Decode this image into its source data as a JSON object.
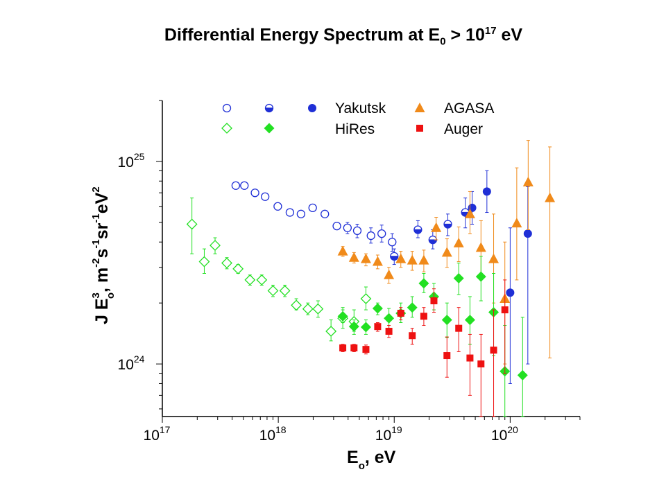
{
  "title": {
    "main": "Differential Energy Spectrum at E",
    "sub": "0",
    "mid": " > 10",
    "sup": "17",
    "tail": " eV"
  },
  "colors": {
    "yakutsk": "#1f2fd6",
    "agasa": "#f08a1a",
    "hires": "#22e022",
    "auger": "#ee1111",
    "axis": "#000000"
  },
  "chart_data": {
    "type": "scatter",
    "x_scale": "log",
    "y_scale": "log",
    "xlim": [
      1e+17,
      4e+20
    ],
    "ylim": [
      5.5e+23,
      2e+25
    ],
    "x_ticks": [
      {
        "value": 1e+17,
        "base": "10",
        "exp": "17"
      },
      {
        "value": 1e+18,
        "base": "10",
        "exp": "18"
      },
      {
        "value": 1e+19,
        "base": "10",
        "exp": "19"
      },
      {
        "value": 1e+20,
        "base": "10",
        "exp": "20"
      }
    ],
    "y_ticks": [
      {
        "value": 1e+24,
        "base": "10",
        "exp": "24"
      },
      {
        "value": 1e+25,
        "base": "10",
        "exp": "25"
      }
    ],
    "xlabel": {
      "a": "E",
      "sub": "o",
      "b": ", eV"
    },
    "ylabel": {
      "a": "J E",
      "sup1": "3",
      "sub1": "o",
      "b": ", m",
      "sup2": "-2",
      "c": "s",
      "sup3": "-1",
      "d": "sr",
      "sup4": "-1",
      "e": "eV",
      "sup5": "2"
    },
    "legend": [
      {
        "label": "Yakutsk"
      },
      {
        "label": "AGASA"
      },
      {
        "label": "HiRes"
      },
      {
        "label": "Auger"
      }
    ],
    "series": [
      {
        "name": "Yakutsk",
        "marker": "circle-open",
        "color": "#1f2fd6",
        "points": [
          {
            "x": 4.3e+17,
            "y": 7.6e+24
          },
          {
            "x": 5.1e+17,
            "y": 7.6e+24
          },
          {
            "x": 6.3e+17,
            "y": 7e+24
          },
          {
            "x": 7.7e+17,
            "y": 6.7e+24
          },
          {
            "x": 9.9e+17,
            "y": 6e+24
          },
          {
            "x": 1.26e+18,
            "y": 5.6e+24
          },
          {
            "x": 1.57e+18,
            "y": 5.5e+24
          },
          {
            "x": 1.98e+18,
            "y": 5.9e+24
          },
          {
            "x": 2.52e+18,
            "y": 5.5e+24
          },
          {
            "x": 3.2e+18,
            "y": 4.8e+24,
            "err": [
              4.6e+24,
              5e+24
            ]
          },
          {
            "x": 3.95e+18,
            "y": 4.7e+24,
            "err": [
              4.4e+24,
              5e+24
            ]
          },
          {
            "x": 4.8e+18,
            "y": 4.55e+24,
            "err": [
              4.2e+24,
              4.9e+24
            ]
          },
          {
            "x": 6.3e+18,
            "y": 4.3e+24,
            "err": [
              3.95e+24,
              4.7e+24
            ]
          },
          {
            "x": 7.8e+18,
            "y": 4.4e+24,
            "err": [
              4e+24,
              4.85e+24
            ]
          },
          {
            "x": 9.6e+18,
            "y": 4e+24,
            "err": [
              3.6e+24,
              4.4e+24
            ]
          }
        ]
      },
      {
        "name": "Yakutsk (half-filled)",
        "marker": "circle-half",
        "color": "#1f2fd6",
        "points": [
          {
            "x": 1e+19,
            "y": 3.4e+24,
            "err": [
              3.1e+24,
              3.7e+24
            ]
          },
          {
            "x": 1.6e+19,
            "y": 4.6e+24,
            "err": [
              4.2e+24,
              5.1e+24
            ]
          },
          {
            "x": 2.15e+19,
            "y": 4.1e+24,
            "err": [
              3.7e+24,
              4.6e+24
            ]
          },
          {
            "x": 2.9e+19,
            "y": 4.9e+24,
            "err": [
              4.3e+24,
              5.5e+24
            ]
          },
          {
            "x": 4.1e+19,
            "y": 5.6e+24,
            "err": [
              4.7e+24,
              6.6e+24
            ]
          }
        ]
      },
      {
        "name": "Yakutsk (filled)",
        "marker": "circle-filled",
        "color": "#1f2fd6",
        "points": [
          {
            "x": 4.7e+19,
            "y": 5.9e+24,
            "err": [
              4.9e+24,
              7.1e+24
            ]
          },
          {
            "x": 6.3e+19,
            "y": 7.1e+24,
            "err": [
              5.6e+24,
              9e+24
            ]
          },
          {
            "x": 1e+20,
            "y": 2.25e+24,
            "err": [
              8e+23,
              4.7e+24
            ]
          },
          {
            "x": 1.42e+20,
            "y": 4.4e+24,
            "err": [
              1e+24,
              7.5e+24
            ]
          }
        ]
      },
      {
        "name": "AGASA",
        "marker": "triangle",
        "color": "#f08a1a",
        "points": [
          {
            "x": 3.6e+18,
            "y": 3.6e+24,
            "err": [
              3.4e+24,
              3.8e+24
            ]
          },
          {
            "x": 4.5e+18,
            "y": 3.35e+24,
            "err": [
              3.15e+24,
              3.55e+24
            ]
          },
          {
            "x": 5.7e+18,
            "y": 3.3e+24,
            "err": [
              3.05e+24,
              3.5e+24
            ]
          },
          {
            "x": 7.2e+18,
            "y": 3.2e+24,
            "err": [
              2.95e+24,
              3.45e+24
            ]
          },
          {
            "x": 9e+18,
            "y": 2.75e+24,
            "err": [
              2.5e+24,
              3e+24
            ]
          },
          {
            "x": 1.14e+19,
            "y": 3.3e+24,
            "err": [
              3e+24,
              3.6e+24
            ]
          },
          {
            "x": 1.43e+19,
            "y": 3.25e+24,
            "err": [
              2.9e+24,
              3.6e+24
            ]
          },
          {
            "x": 1.8e+19,
            "y": 3.25e+24,
            "err": [
              2.85e+24,
              3.65e+24
            ]
          },
          {
            "x": 2.3e+19,
            "y": 4.7e+24,
            "err": [
              4.1e+24,
              5.3e+24
            ]
          },
          {
            "x": 2.85e+19,
            "y": 3.55e+24,
            "err": [
              3e+24,
              4.15e+24
            ]
          },
          {
            "x": 3.6e+19,
            "y": 3.95e+24,
            "err": [
              3.2e+24,
              4.75e+24
            ]
          },
          {
            "x": 4.5e+19,
            "y": 5.5e+24,
            "err": [
              4.4e+24,
              7.1e+24
            ]
          },
          {
            "x": 5.6e+19,
            "y": 3.75e+24,
            "err": [
              2.7e+24,
              5.1e+24
            ]
          },
          {
            "x": 7.2e+19,
            "y": 3.3e+24,
            "err": [
              2e+24,
              5.5e+24
            ]
          },
          {
            "x": 9e+19,
            "y": 2.1e+24,
            "err": [
              1e+24,
              4e+24
            ]
          },
          {
            "x": 1.14e+20,
            "y": 4.95e+24,
            "err": [
              2.6e+24,
              9.3e+24
            ]
          },
          {
            "x": 1.43e+20,
            "y": 7.9e+24,
            "err": [
              4.6e+24,
              1.27e+25
            ]
          },
          {
            "x": 2.2e+20,
            "y": 6.6e+24,
            "err": [
              1.07e+24,
              1.18e+25
            ]
          }
        ]
      },
      {
        "name": "HiRes (monocular open)",
        "marker": "diamond-open",
        "color": "#22e022",
        "points": [
          {
            "x": 1.8e+17,
            "y": 4.9e+24,
            "err": [
              3.5e+24,
              6.6e+24
            ]
          },
          {
            "x": 2.3e+17,
            "y": 3.2e+24,
            "err": [
              2.8e+24,
              3.7e+24
            ]
          },
          {
            "x": 2.85e+17,
            "y": 3.85e+24,
            "err": [
              3.5e+24,
              4.2e+24
            ]
          },
          {
            "x": 3.6e+17,
            "y": 3.15e+24,
            "err": [
              2.95e+24,
              3.35e+24
            ]
          },
          {
            "x": 4.5e+17,
            "y": 2.95e+24,
            "err": [
              2.8e+24,
              3.1e+24
            ]
          },
          {
            "x": 5.7e+17,
            "y": 2.6e+24,
            "err": [
              2.45e+24,
              2.75e+24
            ]
          },
          {
            "x": 7.2e+17,
            "y": 2.6e+24,
            "err": [
              2.45e+24,
              2.75e+24
            ]
          },
          {
            "x": 9e+17,
            "y": 2.3e+24,
            "err": [
              2.15e+24,
              2.45e+24
            ]
          },
          {
            "x": 1.14e+18,
            "y": 2.3e+24,
            "err": [
              2.15e+24,
              2.45e+24
            ]
          },
          {
            "x": 1.43e+18,
            "y": 1.95e+24,
            "err": [
              1.85e+24,
              2.1e+24
            ]
          },
          {
            "x": 1.8e+18,
            "y": 1.87e+24,
            "err": [
              1.75e+24,
              2e+24
            ]
          },
          {
            "x": 2.2e+18,
            "y": 1.87e+24,
            "err": [
              1.7e+24,
              2.05e+24
            ]
          },
          {
            "x": 2.85e+18,
            "y": 1.45e+24,
            "err": [
              1.3e+24,
              1.65e+24
            ]
          },
          {
            "x": 3.6e+18,
            "y": 1.68e+24,
            "err": [
              1.5e+24,
              1.9e+24
            ]
          },
          {
            "x": 4.5e+18,
            "y": 1.62e+24,
            "err": [
              1.45e+24,
              1.85e+24
            ]
          },
          {
            "x": 5.7e+18,
            "y": 2.1e+24,
            "err": [
              1.85e+24,
              2.4e+24
            ]
          }
        ]
      },
      {
        "name": "HiRes",
        "marker": "diamond-filled",
        "color": "#22e022",
        "points": [
          {
            "x": 3.6e+18,
            "y": 1.72e+24,
            "err": [
              1.6e+24,
              1.85e+24
            ]
          },
          {
            "x": 4.5e+18,
            "y": 1.53e+24,
            "err": [
              1.4e+24,
              1.65e+24
            ]
          },
          {
            "x": 5.7e+18,
            "y": 1.52e+24,
            "err": [
              1.4e+24,
              1.65e+24
            ]
          },
          {
            "x": 7.2e+18,
            "y": 1.88e+24,
            "err": [
              1.75e+24,
              2e+24
            ]
          },
          {
            "x": 9e+18,
            "y": 1.68e+24,
            "err": [
              1.5e+24,
              1.88e+24
            ]
          },
          {
            "x": 1.14e+19,
            "y": 1.78e+24,
            "err": [
              1.6e+24,
              2e+24
            ]
          },
          {
            "x": 1.43e+19,
            "y": 1.9e+24,
            "err": [
              1.7e+24,
              2.15e+24
            ]
          },
          {
            "x": 1.8e+19,
            "y": 2.5e+24,
            "err": [
              2.25e+24,
              2.8e+24
            ]
          },
          {
            "x": 2.2e+19,
            "y": 2.15e+24,
            "err": [
              1.85e+24,
              2.5e+24
            ]
          },
          {
            "x": 2.85e+19,
            "y": 1.65e+24,
            "err": [
              1.35e+24,
              2e+24
            ]
          },
          {
            "x": 3.6e+19,
            "y": 2.65e+24,
            "err": [
              2.2e+24,
              3.15e+24
            ]
          },
          {
            "x": 4.5e+19,
            "y": 1.65e+24,
            "err": [
              1.25e+24,
              2.15e+24
            ]
          },
          {
            "x": 5.6e+19,
            "y": 2.7e+24,
            "err": [
              2.05e+24,
              3.4e+24
            ]
          },
          {
            "x": 7.2e+19,
            "y": 1.8e+24,
            "err": [
              1.1e+24,
              2.8e+24
            ]
          },
          {
            "x": 9e+19,
            "y": 9.2e+23,
            "err": [
              5.5e+23,
              1.55e+24
            ]
          },
          {
            "x": 1.28e+20,
            "y": 8.8e+23,
            "err": [
              5.5e+23,
              1.7e+24
            ]
          }
        ]
      },
      {
        "name": "Auger",
        "marker": "square",
        "color": "#ee1111",
        "points": [
          {
            "x": 3.6e+18,
            "y": 1.2e+24,
            "err": [
              1.15e+24,
              1.25e+24
            ]
          },
          {
            "x": 4.5e+18,
            "y": 1.2e+24,
            "err": [
              1.15e+24,
              1.25e+24
            ]
          },
          {
            "x": 5.7e+18,
            "y": 1.18e+24,
            "err": [
              1.12e+24,
              1.24e+24
            ]
          },
          {
            "x": 7.2e+18,
            "y": 1.53e+24,
            "err": [
              1.45e+24,
              1.6e+24
            ]
          },
          {
            "x": 9e+18,
            "y": 1.45e+24,
            "err": [
              1.35e+24,
              1.55e+24
            ]
          },
          {
            "x": 1.14e+19,
            "y": 1.78e+24,
            "err": [
              1.65e+24,
              1.9e+24
            ]
          },
          {
            "x": 1.43e+19,
            "y": 1.38e+24,
            "err": [
              1.25e+24,
              1.5e+24
            ]
          },
          {
            "x": 1.8e+19,
            "y": 1.72e+24,
            "err": [
              1.55e+24,
              1.9e+24
            ]
          },
          {
            "x": 2.2e+19,
            "y": 2.05e+24,
            "err": [
              1.8e+24,
              2.35e+24
            ]
          },
          {
            "x": 2.85e+19,
            "y": 1.1e+24,
            "err": [
              8.6e+23,
              1.36e+24
            ]
          },
          {
            "x": 3.6e+19,
            "y": 1.5e+24,
            "err": [
              1.15e+24,
              1.9e+24
            ]
          },
          {
            "x": 4.5e+19,
            "y": 1.07e+24,
            "err": [
              7e+23,
              1.4e+24
            ]
          },
          {
            "x": 5.6e+19,
            "y": 1e+24,
            "err": [
              5.5e+23,
              1.4e+24
            ]
          },
          {
            "x": 7.2e+19,
            "y": 1.17e+24,
            "err": [
              5.5e+23,
              1.85e+24
            ]
          },
          {
            "x": 9e+19,
            "y": 1.85e+24,
            "err": [
              9e+23,
              2.6e+24
            ]
          }
        ]
      }
    ]
  }
}
